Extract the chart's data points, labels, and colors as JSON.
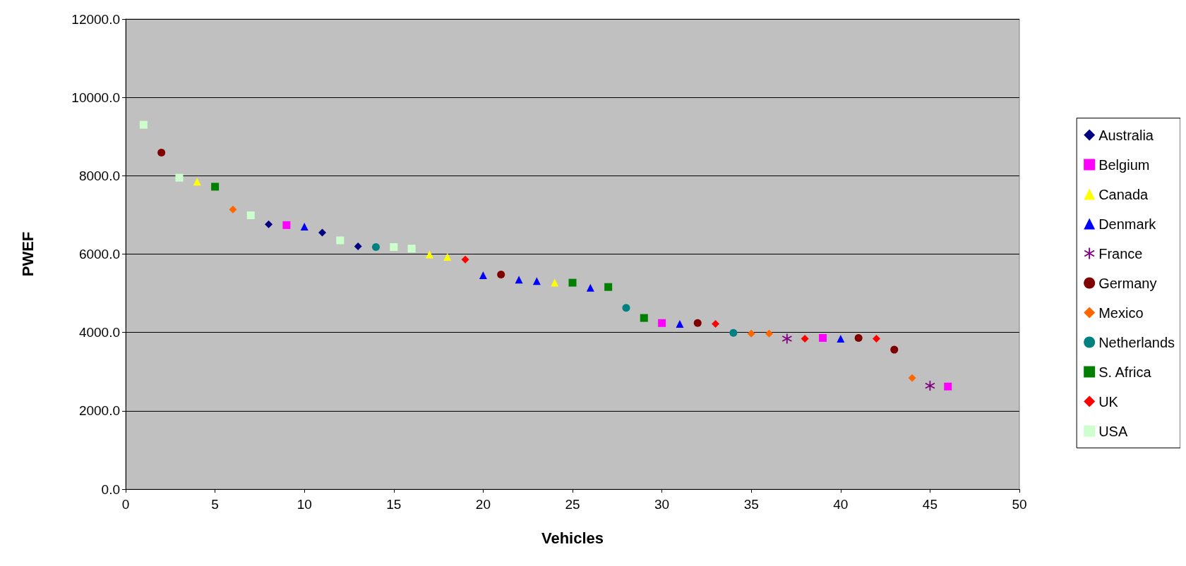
{
  "chart_data": {
    "type": "scatter",
    "xlabel": "Vehicles",
    "ylabel": "PWEF",
    "xlim": [
      0,
      50
    ],
    "xticks": [
      0,
      5,
      10,
      15,
      20,
      25,
      30,
      35,
      40,
      45,
      50
    ],
    "ylim": [
      0,
      12000
    ],
    "yticks": [
      {
        "value": 0,
        "label": "0.0"
      },
      {
        "value": 2000,
        "label": "2000.0"
      },
      {
        "value": 4000,
        "label": "4000.0"
      },
      {
        "value": 6000,
        "label": "6000.0"
      },
      {
        "value": 8000,
        "label": "8000.0"
      },
      {
        "value": 10000,
        "label": "10000.0"
      },
      {
        "value": 12000,
        "label": "12000.0"
      }
    ],
    "grid": "y",
    "legend": "right",
    "series": [
      {
        "name": "Australia",
        "color": "#000080",
        "marker": "diamond",
        "x": [
          8,
          11,
          13
        ],
        "values": [
          6760,
          6550,
          6200
        ]
      },
      {
        "name": "Belgium",
        "color": "#ff00ff",
        "marker": "square",
        "x": [
          9,
          30,
          39,
          46
        ],
        "values": [
          6740,
          4240,
          3860,
          2620
        ]
      },
      {
        "name": "Canada",
        "color": "#ffff00",
        "marker": "triangle",
        "x": [
          4,
          17,
          18,
          24
        ],
        "values": [
          7850,
          5990,
          5930,
          5270
        ]
      },
      {
        "name": "Denmark",
        "color": "#0000ff",
        "marker": "triangle",
        "x": [
          10,
          20,
          22,
          23,
          26,
          31,
          40
        ],
        "values": [
          6700,
          5460,
          5350,
          5310,
          5140,
          4220,
          3840
        ]
      },
      {
        "name": "France",
        "color": "#800080",
        "marker": "cross",
        "x": [
          37,
          45
        ],
        "values": [
          3840,
          2640
        ]
      },
      {
        "name": "Germany",
        "color": "#800000",
        "marker": "circle",
        "x": [
          2,
          21,
          32,
          41,
          43
        ],
        "values": [
          8590,
          5480,
          4240,
          3860,
          3560
        ]
      },
      {
        "name": "Mexico",
        "color": "#ff6600",
        "marker": "diamond",
        "x": [
          6,
          35,
          36,
          44
        ],
        "values": [
          7140,
          3970,
          3970,
          2840
        ]
      },
      {
        "name": "Netherlands",
        "color": "#008080",
        "marker": "circle",
        "x": [
          14,
          28,
          34
        ],
        "values": [
          6180,
          4630,
          3990
        ]
      },
      {
        "name": "S. Africa",
        "color": "#008000",
        "marker": "square",
        "x": [
          5,
          25,
          27,
          29
        ],
        "values": [
          7720,
          5270,
          5160,
          4370
        ]
      },
      {
        "name": "UK",
        "color": "#ff0000",
        "marker": "diamond",
        "x": [
          19,
          33,
          38,
          42
        ],
        "values": [
          5860,
          4220,
          3840,
          3840
        ]
      },
      {
        "name": "USA",
        "color": "#ccffcc",
        "marker": "square",
        "x": [
          1,
          3,
          7,
          12,
          15,
          16
        ],
        "values": [
          9300,
          7950,
          6990,
          6350,
          6180,
          6140
        ]
      }
    ]
  }
}
